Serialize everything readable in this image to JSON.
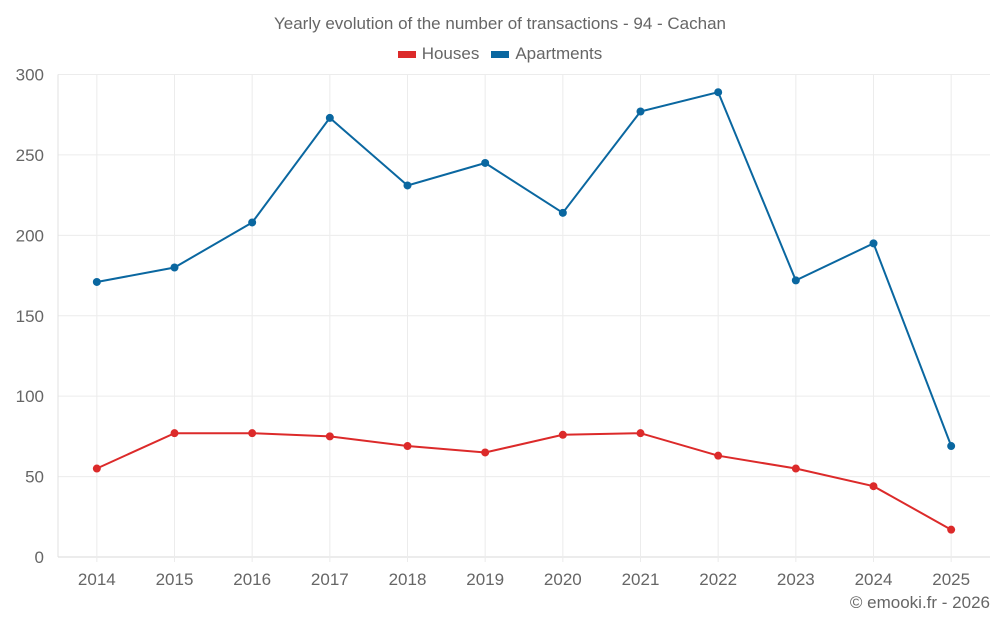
{
  "chart_data": {
    "type": "line",
    "title": "Yearly evolution of the number of transactions - 94 - Cachan",
    "xlabel": "",
    "ylabel": "",
    "x": [
      "2014",
      "2015",
      "2016",
      "2017",
      "2018",
      "2019",
      "2020",
      "2021",
      "2022",
      "2023",
      "2024",
      "2025"
    ],
    "ylim": [
      0,
      300
    ],
    "yticks": [
      0,
      50,
      100,
      150,
      200,
      250,
      300
    ],
    "grid": true,
    "legend_position": "top-center",
    "series": [
      {
        "name": "Houses",
        "color": "#dc2a2a",
        "values": [
          55,
          77,
          77,
          75,
          69,
          65,
          76,
          77,
          63,
          55,
          44,
          17
        ]
      },
      {
        "name": "Apartments",
        "color": "#0a67a0",
        "values": [
          171,
          180,
          208,
          273,
          231,
          245,
          214,
          277,
          289,
          172,
          195,
          69
        ]
      }
    ]
  },
  "credit": "© emooki.fr - 2026"
}
